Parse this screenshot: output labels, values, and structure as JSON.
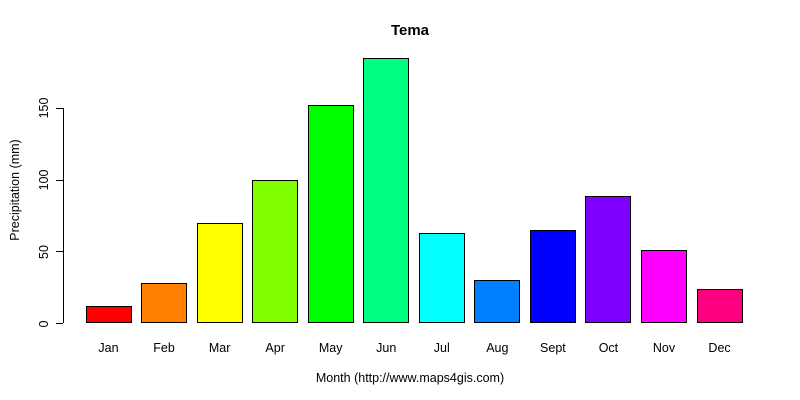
{
  "chart_data": {
    "type": "bar",
    "title": "Tema",
    "xlabel": "Month (http://www.maps4gis.com)",
    "ylabel": "Precipitation (mm)",
    "categories": [
      "Jan",
      "Feb",
      "Mar",
      "Apr",
      "May",
      "Jun",
      "Jul",
      "Aug",
      "Sept",
      "Oct",
      "Nov",
      "Dec"
    ],
    "values": [
      12,
      28,
      70,
      100,
      152,
      185,
      63,
      30,
      65,
      89,
      51,
      24
    ],
    "bar_colors": [
      "#FF0000",
      "#FF8000",
      "#FFFF00",
      "#80FF00",
      "#00FF00",
      "#00FF80",
      "#00FFFF",
      "#0080FF",
      "#0000FF",
      "#8000FF",
      "#FF00FF",
      "#FF0080"
    ],
    "bar_border_color": "#000000",
    "axis_color": "#000000",
    "text_color": "#000000",
    "background": "#FFFFFF",
    "yticks": [
      0,
      50,
      100,
      150
    ],
    "ylim": [
      0,
      190
    ],
    "grid": false,
    "legend": false
  }
}
